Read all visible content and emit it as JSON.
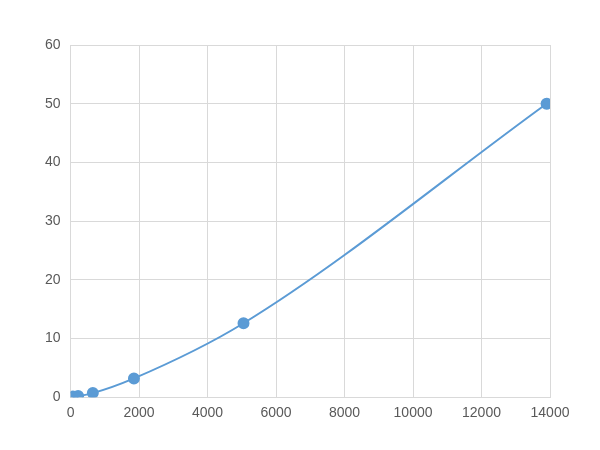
{
  "chart_data": {
    "type": "scatter",
    "x": [
      70,
      220,
      650,
      1850,
      5050,
      13900
    ],
    "values": [
      0.1,
      0.2,
      0.7,
      3.2,
      12.6,
      50
    ],
    "color": "#5b9bd5",
    "marker": "circle",
    "line_style": "solid",
    "xlim": [
      0,
      14000
    ],
    "xticks": [
      0,
      2000,
      4000,
      6000,
      8000,
      10000,
      12000,
      14000
    ],
    "ylim": [
      0,
      60
    ],
    "yticks": [
      0,
      10,
      20,
      30,
      40,
      50,
      60
    ],
    "grid": true
  }
}
